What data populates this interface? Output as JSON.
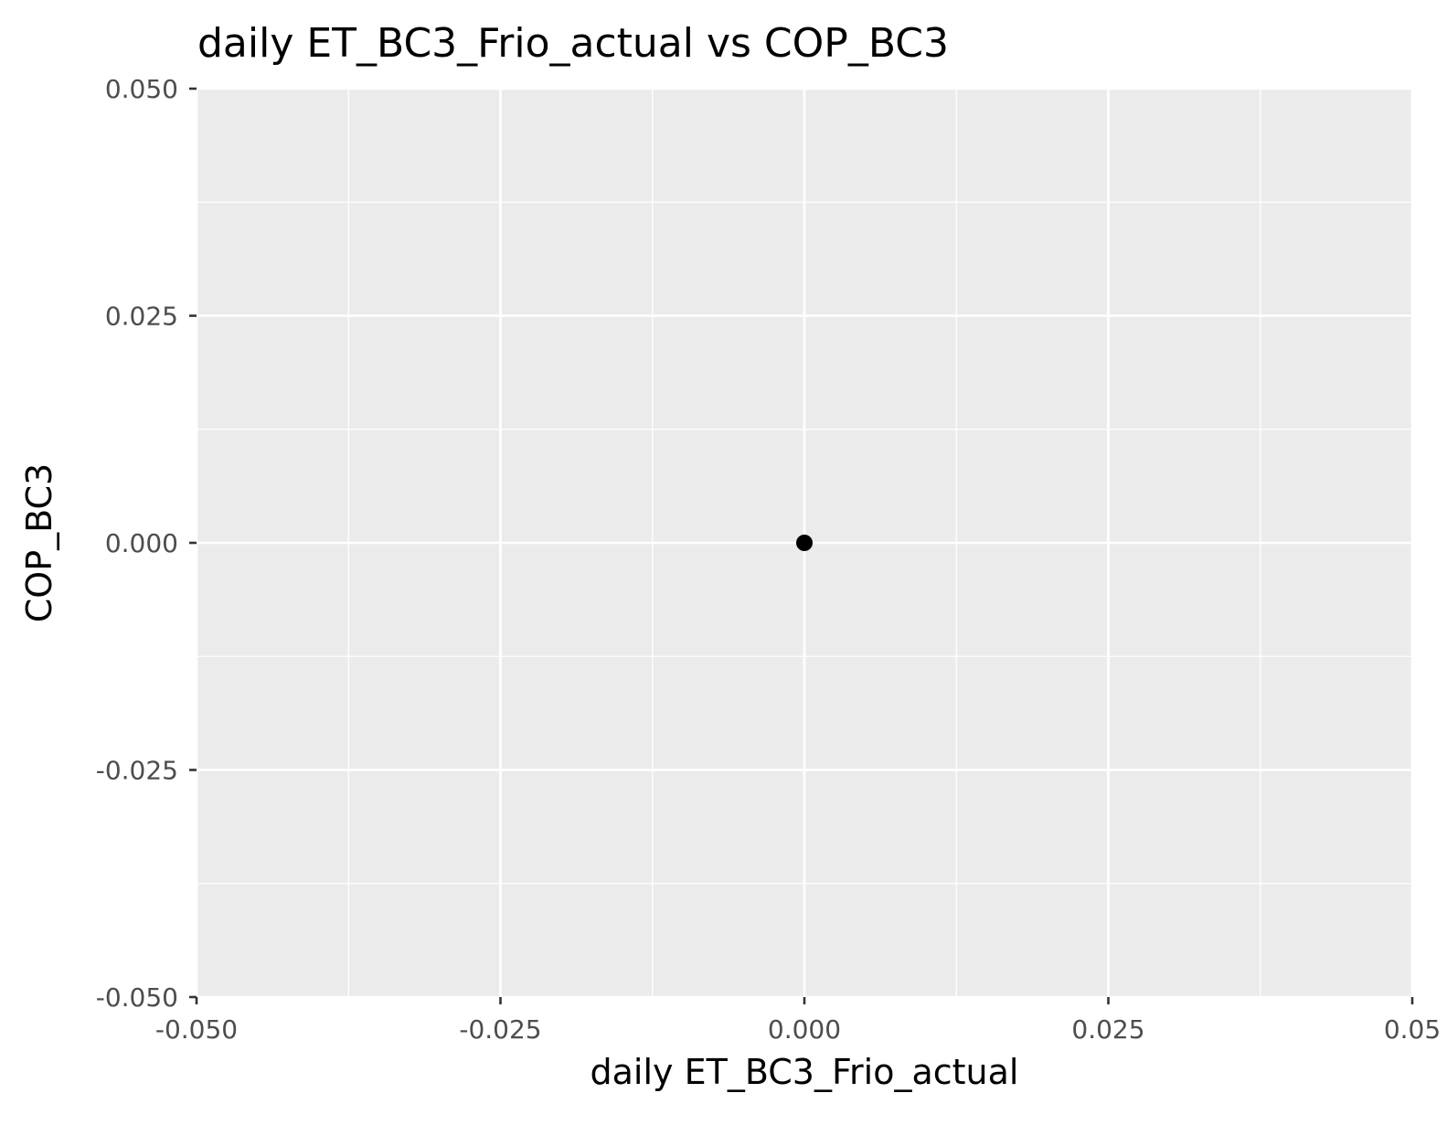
{
  "chart_data": {
    "type": "scatter",
    "title": "daily ET_BC3_Frio_actual vs COP_BC3",
    "xlabel": "daily ET_BC3_Frio_actual",
    "ylabel": "COP_BC3",
    "xlim": [
      -0.05,
      0.05
    ],
    "ylim": [
      -0.05,
      0.05
    ],
    "x_ticks": [
      -0.05,
      -0.025,
      0,
      0.025,
      0.05
    ],
    "y_ticks": [
      -0.05,
      -0.025,
      0,
      0.025,
      0.05
    ],
    "x_tick_labels": [
      "-0.050",
      "-0.025",
      "0.000",
      "0.025",
      "0.05"
    ],
    "y_tick_labels": [
      "-0.050",
      "-0.025",
      "0.000",
      "0.025",
      "0.050"
    ],
    "grid": true,
    "background_color": "#ebebeb",
    "grid_color": "#ffffff",
    "point_color": "#000000",
    "points": [
      {
        "x": 0,
        "y": 0
      }
    ]
  }
}
